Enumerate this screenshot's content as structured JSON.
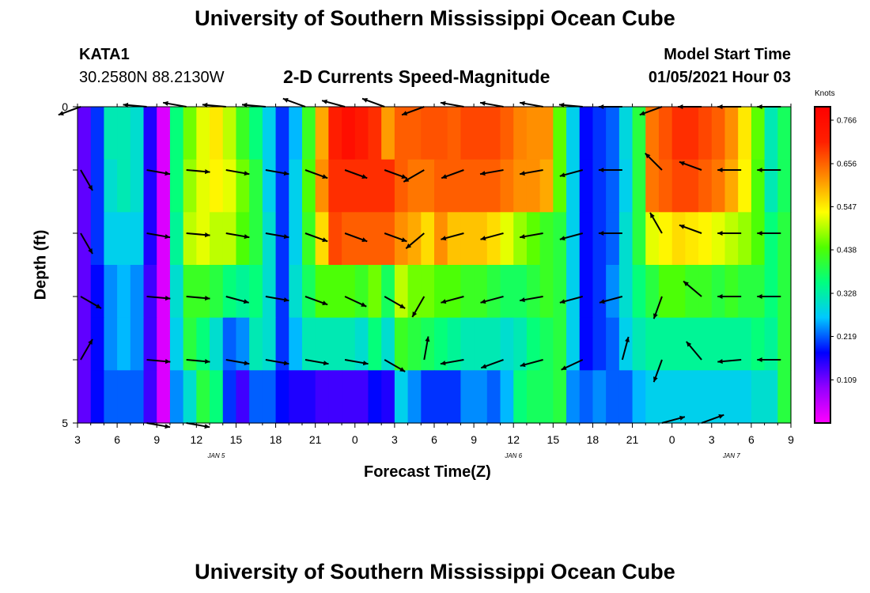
{
  "header": {
    "title": "University of Southern Mississippi Ocean Cube",
    "station_id": "KATA1",
    "station_coords": "30.2580N 88.2130W",
    "product_title": "2-D Currents Speed-Magnitude",
    "model_start_label": "Model Start Time",
    "model_start_value": "01/05/2021 Hour 03"
  },
  "footer": {
    "title": "University of Southern Mississippi Ocean Cube"
  },
  "chart_data": {
    "type": "heatmap",
    "title": "2-D Currents Speed-Magnitude",
    "xlabel": "Forecast Time(Z)",
    "ylabel": "Depth (ft)",
    "y_tick_labels": [
      "0",
      "5"
    ],
    "ylim": [
      0,
      5
    ],
    "x_tick_labels": [
      "3",
      "6",
      "9",
      "12",
      "15",
      "18",
      "21",
      "0",
      "3",
      "6",
      "9",
      "12",
      "15",
      "18",
      "21",
      "0",
      "3",
      "6",
      "9"
    ],
    "x_dates": [
      {
        "label": "JAN 5",
        "tick_index": 3.5
      },
      {
        "label": "JAN 6",
        "tick_index": 11
      },
      {
        "label": "JAN 7",
        "tick_index": 16.5
      }
    ],
    "forecast_hours_range": [
      0,
      54
    ],
    "depth_layers": 5,
    "colorbar": {
      "label": "Knots",
      "ticks": [
        "0.109",
        "0.219",
        "0.328",
        "0.438",
        "0.547",
        "0.656",
        "0.766"
      ],
      "range": [
        0,
        0.8
      ],
      "colors": [
        "#ff00ff",
        "#9400ff",
        "#0000ff",
        "#00c8ff",
        "#00ff80",
        "#50ff00",
        "#ffff00",
        "#ff8c00",
        "#ff2000",
        "#ff0000"
      ]
    },
    "speed_grid_knots": [
      [
        0.12,
        0.2,
        0.32,
        0.32,
        0.3,
        0.16,
        0.03,
        0.36,
        0.46,
        0.52,
        0.55,
        0.5,
        0.42,
        0.36,
        0.28,
        0.2,
        0.26,
        0.42,
        0.6,
        0.72,
        0.76,
        0.73,
        0.7,
        0.61,
        0.66,
        0.66,
        0.67,
        0.67,
        0.66,
        0.68,
        0.68,
        0.68,
        0.66,
        0.63,
        0.62,
        0.62,
        0.45,
        0.28,
        0.18,
        0.2,
        0.22,
        0.29,
        0.4,
        0.64,
        0.67,
        0.7,
        0.7,
        0.68,
        0.66,
        0.62,
        0.55,
        0.45,
        0.32,
        0.38
      ],
      [
        0.12,
        0.2,
        0.3,
        0.32,
        0.3,
        0.16,
        0.03,
        0.36,
        0.48,
        0.52,
        0.54,
        0.52,
        0.46,
        0.4,
        0.28,
        0.2,
        0.28,
        0.44,
        0.62,
        0.7,
        0.7,
        0.7,
        0.7,
        0.7,
        0.66,
        0.64,
        0.64,
        0.66,
        0.66,
        0.66,
        0.66,
        0.66,
        0.64,
        0.62,
        0.62,
        0.6,
        0.45,
        0.28,
        0.18,
        0.2,
        0.22,
        0.28,
        0.4,
        0.64,
        0.66,
        0.68,
        0.68,
        0.66,
        0.64,
        0.6,
        0.54,
        0.44,
        0.32,
        0.38
      ],
      [
        0.12,
        0.2,
        0.28,
        0.28,
        0.28,
        0.16,
        0.03,
        0.34,
        0.5,
        0.52,
        0.5,
        0.5,
        0.44,
        0.4,
        0.3,
        0.2,
        0.28,
        0.42,
        0.56,
        0.68,
        0.66,
        0.66,
        0.66,
        0.66,
        0.62,
        0.6,
        0.56,
        0.62,
        0.58,
        0.58,
        0.58,
        0.56,
        0.52,
        0.48,
        0.45,
        0.42,
        0.4,
        0.28,
        0.18,
        0.2,
        0.22,
        0.3,
        0.4,
        0.52,
        0.54,
        0.56,
        0.55,
        0.54,
        0.52,
        0.5,
        0.48,
        0.44,
        0.36,
        0.4
      ],
      [
        0.12,
        0.18,
        0.24,
        0.26,
        0.24,
        0.14,
        0.03,
        0.3,
        0.42,
        0.42,
        0.4,
        0.36,
        0.34,
        0.36,
        0.3,
        0.2,
        0.3,
        0.38,
        0.44,
        0.44,
        0.44,
        0.42,
        0.46,
        0.38,
        0.5,
        0.46,
        0.46,
        0.44,
        0.44,
        0.42,
        0.42,
        0.4,
        0.38,
        0.38,
        0.4,
        0.42,
        0.4,
        0.28,
        0.18,
        0.2,
        0.24,
        0.3,
        0.36,
        0.4,
        0.44,
        0.44,
        0.42,
        0.42,
        0.4,
        0.42,
        0.4,
        0.4,
        0.36,
        0.4
      ],
      [
        0.12,
        0.18,
        0.24,
        0.26,
        0.24,
        0.14,
        0.03,
        0.28,
        0.4,
        0.36,
        0.3,
        0.22,
        0.24,
        0.32,
        0.3,
        0.2,
        0.26,
        0.32,
        0.32,
        0.32,
        0.32,
        0.3,
        0.36,
        0.3,
        0.42,
        0.4,
        0.38,
        0.36,
        0.34,
        0.32,
        0.32,
        0.32,
        0.3,
        0.32,
        0.36,
        0.38,
        0.4,
        0.28,
        0.18,
        0.2,
        0.22,
        0.28,
        0.32,
        0.34,
        0.34,
        0.34,
        0.34,
        0.34,
        0.34,
        0.34,
        0.34,
        0.36,
        0.34,
        0.4
      ],
      [
        0.12,
        0.18,
        0.22,
        0.22,
        0.22,
        0.14,
        0.03,
        0.24,
        0.3,
        0.4,
        0.36,
        0.2,
        0.14,
        0.22,
        0.22,
        0.18,
        0.16,
        0.16,
        0.14,
        0.14,
        0.14,
        0.14,
        0.18,
        0.16,
        0.28,
        0.24,
        0.2,
        0.2,
        0.2,
        0.24,
        0.24,
        0.22,
        0.26,
        0.36,
        0.38,
        0.38,
        0.4,
        0.24,
        0.22,
        0.24,
        0.22,
        0.22,
        0.26,
        0.28,
        0.28,
        0.28,
        0.28,
        0.28,
        0.28,
        0.28,
        0.28,
        0.3,
        0.3,
        0.4
      ]
    ],
    "vector_arrow_columns_hours": [
      0,
      5,
      8,
      11,
      14,
      17,
      20,
      23,
      26,
      29,
      32,
      35,
      38,
      41,
      44,
      47,
      50,
      53
    ],
    "vector_depth_rows": [
      0,
      1,
      2,
      3,
      4,
      5
    ],
    "vector_angles_deg": [
      [
        200,
        175,
        170,
        175,
        175,
        160,
        165,
        160,
        200,
        170,
        170,
        170,
        175,
        180,
        200,
        180,
        180,
        180
      ],
      [
        -60,
        -10,
        -5,
        -10,
        -10,
        -20,
        -20,
        -20,
        210,
        200,
        190,
        190,
        195,
        180,
        135,
        160,
        180,
        180
      ],
      [
        -60,
        -10,
        -5,
        -10,
        -10,
        -20,
        -20,
        -20,
        220,
        195,
        195,
        190,
        195,
        180,
        120,
        160,
        180,
        180
      ],
      [
        -30,
        -5,
        -5,
        -15,
        -10,
        -20,
        -25,
        -30,
        240,
        195,
        195,
        190,
        195,
        195,
        250,
        140,
        180,
        180
      ],
      [
        60,
        -5,
        -5,
        -10,
        -10,
        -10,
        -10,
        -30,
        80,
        190,
        200,
        195,
        205,
        75,
        250,
        130,
        185,
        180
      ],
      [
        null,
        -10,
        -10,
        null,
        null,
        null,
        null,
        null,
        null,
        null,
        null,
        null,
        null,
        null,
        15,
        20,
        null,
        null
      ]
    ]
  }
}
